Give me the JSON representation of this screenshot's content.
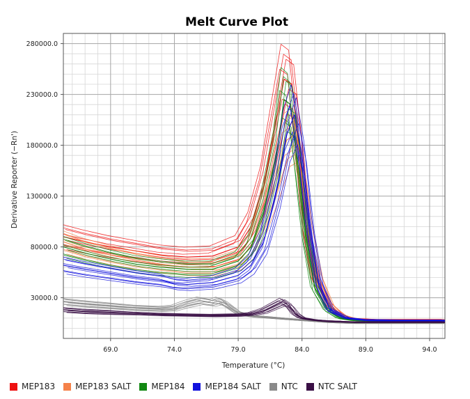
{
  "chart_data": {
    "type": "line",
    "title": "Melt Curve Plot",
    "xlabel": "Temperature (°C)",
    "ylabel": "Derivative Reporter (−Rn')",
    "xlim": [
      65.3,
      95.2
    ],
    "ylim": [
      -10000,
      290000
    ],
    "xticks": [
      69.0,
      74.0,
      79.0,
      84.0,
      89.0,
      94.0
    ],
    "xtick_labels": [
      "69.0",
      "74.0",
      "79.0",
      "84.0",
      "89.0",
      "94.0"
    ],
    "yticks": [
      30000,
      80000,
      130000,
      180000,
      230000,
      280000
    ],
    "ytick_labels": [
      "30000.0",
      "80000.0",
      "130000.0",
      "180000.0",
      "230000.0",
      "280000.0"
    ],
    "grid": true,
    "legend_position": "bottom",
    "series": [
      {
        "name": "MEP183",
        "color": "#ee1111",
        "x": [
          65.3,
          67,
          69,
          71,
          73,
          75,
          77,
          79,
          80,
          81,
          82,
          82.6,
          83.2,
          83.8,
          84.3,
          85,
          86,
          87,
          88,
          90,
          92,
          95.2
        ],
        "values": [
          90000,
          85000,
          80000,
          76000,
          72000,
          70000,
          71000,
          80000,
          100000,
          140000,
          205000,
          245000,
          240000,
          175000,
          100000,
          50000,
          25000,
          13000,
          9000,
          8000,
          8000,
          8000
        ]
      },
      {
        "name": "MEP183 SALT",
        "color": "#f5824a",
        "x": [
          65.3,
          67,
          69,
          71,
          73,
          75,
          77,
          79,
          80,
          81,
          82,
          82.8,
          83.4,
          84,
          84.6,
          85.3,
          86.2,
          87.2,
          88.5,
          90,
          92,
          95.2
        ],
        "values": [
          85000,
          78000,
          72000,
          67000,
          63000,
          60000,
          60000,
          67000,
          80000,
          110000,
          150000,
          185000,
          190000,
          150000,
          95000,
          50000,
          22000,
          12000,
          8000,
          7500,
          7500,
          7500
        ]
      },
      {
        "name": "MEP184",
        "color": "#128812",
        "x": [
          65.3,
          67,
          69,
          71,
          73,
          75,
          77,
          79,
          80,
          81,
          82,
          82.6,
          83.1,
          83.7,
          84.3,
          85,
          86,
          87,
          88,
          90,
          92,
          95.2
        ],
        "values": [
          80000,
          74000,
          68000,
          63000,
          60000,
          58000,
          58000,
          66000,
          80000,
          115000,
          170000,
          225000,
          220000,
          160000,
          90000,
          40000,
          18000,
          10000,
          8000,
          7500,
          7500,
          7500
        ]
      },
      {
        "name": "MEP184 SALT",
        "color": "#1111dd",
        "x": [
          65.3,
          67,
          69,
          71,
          73,
          74,
          75,
          77,
          79,
          80,
          81,
          82,
          82.8,
          83.4,
          84,
          84.6,
          85.3,
          86.2,
          87.5,
          89,
          92,
          95.2
        ],
        "values": [
          62000,
          58000,
          54000,
          50000,
          47000,
          44000,
          43000,
          45000,
          52000,
          62000,
          85000,
          135000,
          190000,
          210000,
          170000,
          100000,
          45000,
          18000,
          10000,
          8000,
          7500,
          7500
        ]
      },
      {
        "name": "NTC",
        "color": "#8a8a8a",
        "x": [
          65.3,
          67,
          69,
          71,
          73,
          74,
          75,
          76,
          77,
          77.5,
          78,
          79,
          80,
          82,
          84,
          86,
          88,
          90,
          95.2
        ],
        "values": [
          26000,
          24000,
          22000,
          20000,
          19000,
          20000,
          24000,
          27000,
          25000,
          27000,
          24000,
          15000,
          12000,
          10000,
          8000,
          6000,
          5000,
          5000,
          5000
        ]
      },
      {
        "name": "NTC SALT",
        "color": "#3a0f45",
        "x": [
          65.3,
          67,
          69,
          71,
          73,
          75,
          77,
          79,
          80,
          81,
          82,
          82.5,
          83,
          83.5,
          84,
          85,
          86,
          88,
          90,
          95.2
        ],
        "values": [
          18000,
          16500,
          15500,
          14500,
          13500,
          13000,
          12500,
          13000,
          14000,
          17000,
          23000,
          26000,
          22000,
          14000,
          10000,
          8000,
          7000,
          6000,
          6000,
          6000
        ]
      }
    ]
  }
}
